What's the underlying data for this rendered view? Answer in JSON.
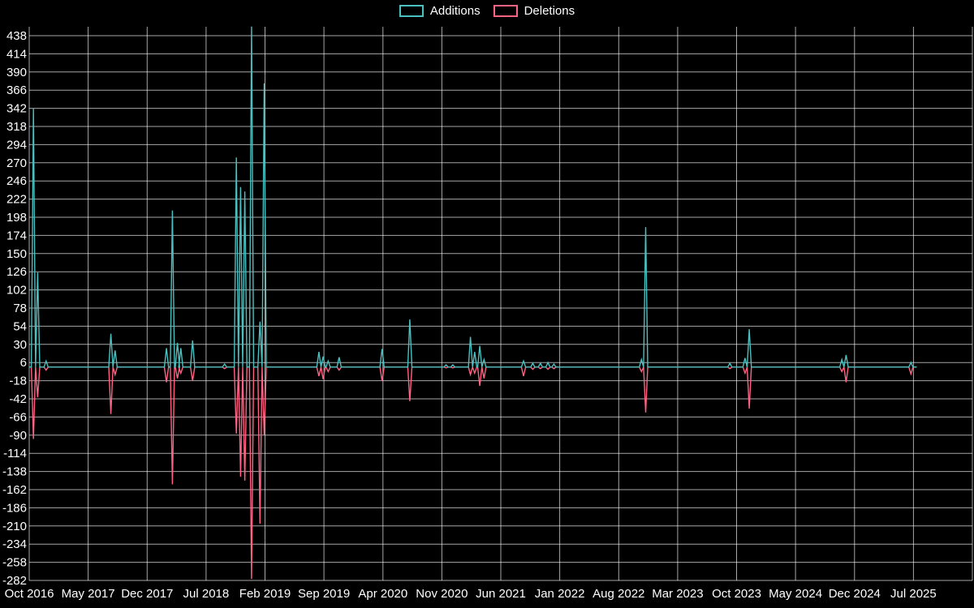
{
  "chart_data": {
    "type": "line",
    "title": "",
    "series_names": [
      "Additions",
      "Deletions"
    ],
    "legend_position": "top-center",
    "grid": true,
    "baseline": 0,
    "ylim": [
      -282,
      438
    ],
    "y_tick_step": 24,
    "y_tick_labels": [
      438,
      414,
      390,
      366,
      342,
      318,
      294,
      270,
      246,
      222,
      198,
      174,
      150,
      126,
      102,
      78,
      54,
      30,
      6,
      -18,
      -42,
      -66,
      -90,
      -114,
      -138,
      -162,
      -186,
      -210,
      -234,
      -258,
      -282
    ],
    "x_tick_labels": [
      "Oct 2016",
      "May 2017",
      "Dec 2017",
      "Jul 2018",
      "Feb 2019",
      "Sep 2019",
      "Apr 2020",
      "Nov 2020",
      "Jun 2021",
      "Jan 2022",
      "Aug 2022",
      "Mar 2023",
      "Oct 2023",
      "May 2024",
      "Dec 2024",
      "Jul 2025"
    ],
    "x_tick_interval_months": 7,
    "colors": {
      "additions": "#4bc0c0",
      "deletions": "#ff6384",
      "grid": "rgba(255,255,255,0.65)",
      "text": "#ffffff",
      "background": "#000000"
    },
    "points": [
      {
        "date": "2016-10",
        "month": 0.5,
        "additions": 342,
        "deletions": -95
      },
      {
        "date": "2016-11",
        "month": 1.0,
        "additions": 125,
        "deletions": -40
      },
      {
        "date": "2016-12",
        "month": 2.0,
        "additions": 8,
        "deletions": -4
      },
      {
        "date": "2017-08",
        "month": 9.7,
        "additions": 44,
        "deletions": -62
      },
      {
        "date": "2017-08",
        "month": 10.2,
        "additions": 22,
        "deletions": -10
      },
      {
        "date": "2018-02",
        "month": 16.3,
        "additions": 25,
        "deletions": -20
      },
      {
        "date": "2018-03",
        "month": 17.0,
        "additions": 207,
        "deletions": -155
      },
      {
        "date": "2018-03",
        "month": 17.6,
        "additions": 32,
        "deletions": -15
      },
      {
        "date": "2018-04",
        "month": 18.0,
        "additions": 25,
        "deletions": -8
      },
      {
        "date": "2018-05",
        "month": 19.4,
        "additions": 35,
        "deletions": -18
      },
      {
        "date": "2018-09",
        "month": 23.2,
        "additions": 4,
        "deletions": -2
      },
      {
        "date": "2018-10",
        "month": 24.6,
        "additions": 277,
        "deletions": -88
      },
      {
        "date": "2018-11",
        "month": 25.1,
        "additions": 238,
        "deletions": -145
      },
      {
        "date": "2018-11",
        "month": 25.6,
        "additions": 232,
        "deletions": -150
      },
      {
        "date": "2018-12",
        "month": 26.4,
        "additions": 450,
        "deletions": -280
      },
      {
        "date": "2019-01",
        "month": 27.4,
        "additions": 60,
        "deletions": -207
      },
      {
        "date": "2019-01",
        "month": 27.9,
        "additions": 375,
        "deletions": -90
      },
      {
        "date": "2019-08",
        "month": 34.4,
        "additions": 20,
        "deletions": -12
      },
      {
        "date": "2019-09",
        "month": 34.9,
        "additions": 14,
        "deletions": -16
      },
      {
        "date": "2019-09",
        "month": 35.5,
        "additions": 8,
        "deletions": -6
      },
      {
        "date": "2019-11",
        "month": 36.8,
        "additions": 13,
        "deletions": -4
      },
      {
        "date": "2020-03",
        "month": 41.9,
        "additions": 24,
        "deletions": -18
      },
      {
        "date": "2020-07",
        "month": 45.2,
        "additions": 63,
        "deletions": -45
      },
      {
        "date": "2020-11",
        "month": 49.5,
        "additions": 3,
        "deletions": -1
      },
      {
        "date": "2020-12",
        "month": 50.3,
        "additions": 3,
        "deletions": -1
      },
      {
        "date": "2021-02",
        "month": 52.4,
        "additions": 40,
        "deletions": -10
      },
      {
        "date": "2021-03",
        "month": 52.9,
        "additions": 20,
        "deletions": -8
      },
      {
        "date": "2021-03",
        "month": 53.5,
        "additions": 28,
        "deletions": -25
      },
      {
        "date": "2021-04",
        "month": 54.0,
        "additions": 10,
        "deletions": -15
      },
      {
        "date": "2021-09",
        "month": 58.7,
        "additions": 8,
        "deletions": -12
      },
      {
        "date": "2021-10",
        "month": 59.8,
        "additions": 5,
        "deletions": -3
      },
      {
        "date": "2021-10",
        "month": 60.7,
        "additions": 5,
        "deletions": -2
      },
      {
        "date": "2021-11",
        "month": 61.6,
        "additions": 6,
        "deletions": -3
      },
      {
        "date": "2021-12",
        "month": 62.3,
        "additions": 4,
        "deletions": -2
      },
      {
        "date": "2022-10",
        "month": 72.7,
        "additions": 10,
        "deletions": -6
      },
      {
        "date": "2022-11",
        "month": 73.2,
        "additions": 185,
        "deletions": -60
      },
      {
        "date": "2023-09",
        "month": 83.2,
        "additions": 5,
        "deletions": -2
      },
      {
        "date": "2023-11",
        "month": 85.0,
        "additions": 12,
        "deletions": -8
      },
      {
        "date": "2023-11",
        "month": 85.5,
        "additions": 50,
        "deletions": -55
      },
      {
        "date": "2024-10",
        "month": 96.5,
        "additions": 10,
        "deletions": -6
      },
      {
        "date": "2024-11",
        "month": 97.0,
        "additions": 16,
        "deletions": -20
      },
      {
        "date": "2025-06",
        "month": 104.7,
        "additions": 6,
        "deletions": -9
      }
    ]
  }
}
